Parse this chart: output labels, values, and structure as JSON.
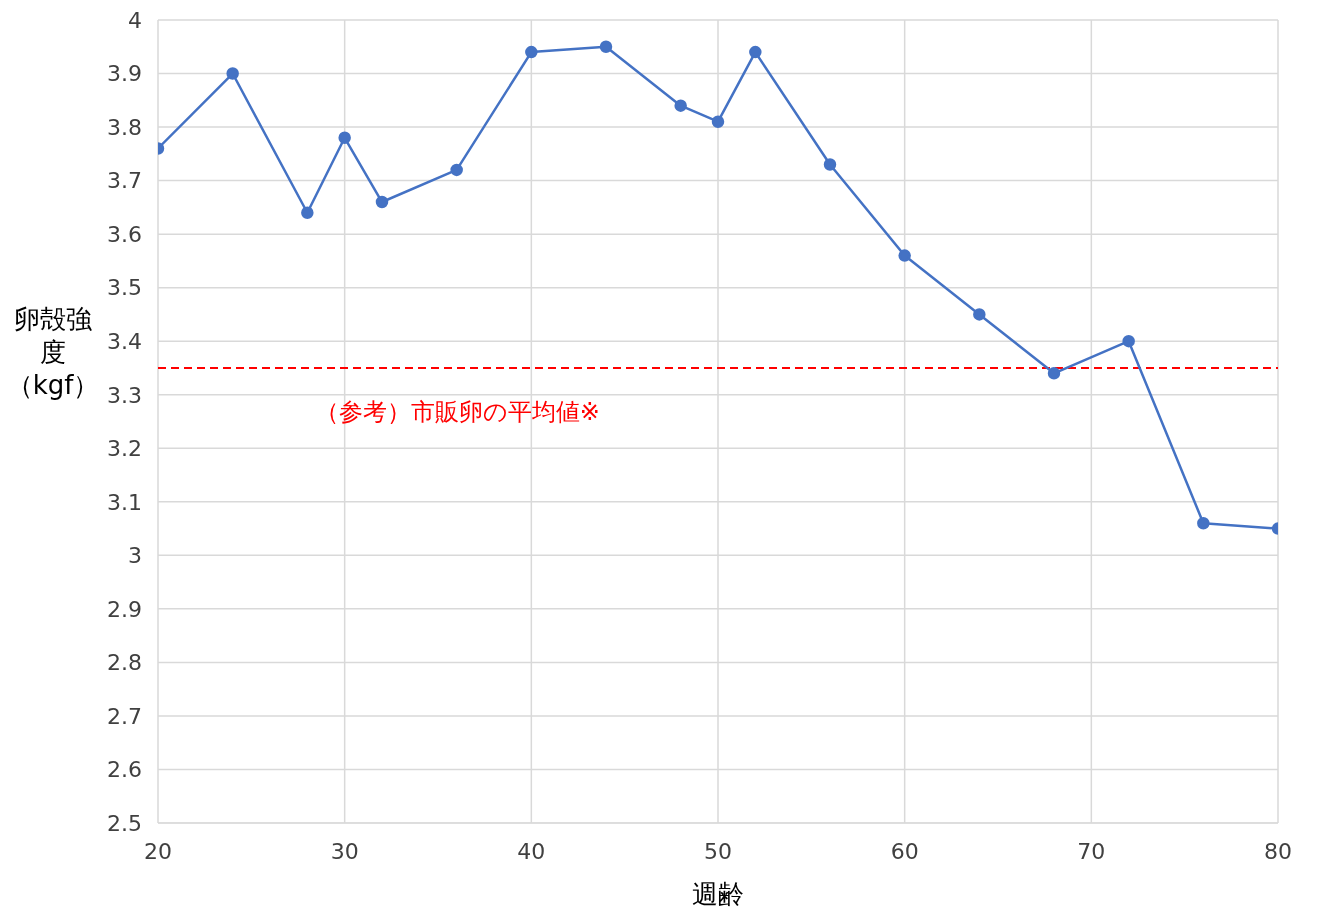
{
  "chart_data": {
    "type": "line",
    "xlabel": "週齢",
    "ylabel": "卵殻強度（kgf）",
    "x": [
      20,
      24,
      28,
      30,
      32,
      36,
      40,
      44,
      48,
      50,
      52,
      56,
      60,
      64,
      68,
      72,
      76,
      80
    ],
    "series": [
      {
        "color": "#4472c4",
        "values": [
          3.76,
          3.9,
          3.64,
          3.78,
          3.66,
          3.72,
          3.94,
          3.95,
          3.84,
          3.81,
          3.94,
          3.73,
          3.56,
          3.45,
          3.34,
          3.4,
          3.06,
          3.05
        ]
      }
    ],
    "xlim": [
      20,
      80
    ],
    "xticks": [
      20,
      30,
      40,
      50,
      60,
      70,
      80
    ],
    "ylim": [
      2.5,
      4
    ],
    "yticks": [
      2.5,
      2.6,
      2.7,
      2.8,
      2.9,
      3,
      3.1,
      3.2,
      3.3,
      3.4,
      3.5,
      3.6,
      3.7,
      3.8,
      3.9,
      4
    ],
    "grid": true,
    "marker": "circle",
    "line_style": "solid",
    "ref_lines": [
      {
        "axis": "y",
        "value": 3.35,
        "label": "（参考）市販卵の平均値※",
        "color": "#ff0000",
        "line_style": "dashed"
      }
    ]
  }
}
